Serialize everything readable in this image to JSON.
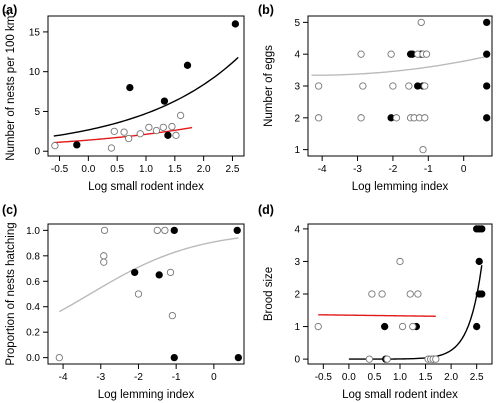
{
  "chart_data": [
    {
      "panel": "(a)",
      "type": "scatter",
      "xlabel": "Log small rodent index",
      "ylabel": "Number of nests per 100 km",
      "ylabel_sup": "2",
      "xlim": [
        -0.7,
        2.7
      ],
      "ylim": [
        -0.6,
        17
      ],
      "xticks": [
        -0.5,
        0.0,
        0.5,
        1.0,
        1.5,
        2.0,
        2.5
      ],
      "yticks": [
        0,
        5,
        10,
        15
      ],
      "grid": false,
      "colors": {
        "filled": "#000000",
        "open": "#777777",
        "fit_filled": "#000000",
        "fit_open": "#e31a1c"
      },
      "series": [
        {
          "marker": "filled",
          "points": [
            [
              -0.2,
              0.8
            ],
            [
              0.72,
              8.0
            ],
            [
              1.32,
              6.3
            ],
            [
              1.38,
              2.0
            ],
            [
              1.72,
              10.8
            ],
            [
              2.55,
              16.0
            ]
          ]
        },
        {
          "marker": "open",
          "points": [
            [
              -0.58,
              0.7
            ],
            [
              0.4,
              0.4
            ],
            [
              0.45,
              2.5
            ],
            [
              0.62,
              2.4
            ],
            [
              0.7,
              1.6
            ],
            [
              0.9,
              2.2
            ],
            [
              1.05,
              3.0
            ],
            [
              1.18,
              2.6
            ],
            [
              1.3,
              3.0
            ],
            [
              1.45,
              3.1
            ],
            [
              1.52,
              2.0
            ],
            [
              1.6,
              4.5
            ]
          ]
        }
      ],
      "fit_lines": [
        {
          "color_key": "fit_filled",
          "x": [
            -0.6,
            2.6
          ],
          "fn": "exp",
          "a": 2.68,
          "b": 0.57
        },
        {
          "color_key": "fit_open",
          "x": [
            -0.6,
            1.8
          ],
          "fn": "exp",
          "a": 1.4,
          "b": 0.42
        }
      ]
    },
    {
      "panel": "(b)",
      "type": "scatter",
      "xlabel": "Log lemming index",
      "ylabel": "Number of eggs",
      "xlim": [
        -4.4,
        0.8
      ],
      "ylim": [
        0.8,
        5.2
      ],
      "xticks": [
        -4,
        -3,
        -2,
        -1,
        0
      ],
      "yticks": [
        1,
        2,
        3,
        4,
        5
      ],
      "grid": false,
      "colors": {
        "filled": "#000000",
        "open": "#777777",
        "fit": "#bbbbbb"
      },
      "series": [
        {
          "marker": "filled",
          "points": [
            [
              -2.05,
              2
            ],
            [
              -1.5,
              4
            ],
            [
              -1.45,
              4
            ],
            [
              -1.3,
              3
            ],
            [
              -1.2,
              4
            ],
            [
              -1.15,
              3
            ],
            [
              0.65,
              5
            ],
            [
              0.65,
              4
            ],
            [
              0.65,
              3
            ],
            [
              0.65,
              2
            ]
          ]
        },
        {
          "marker": "open",
          "points": [
            [
              -4.1,
              3
            ],
            [
              -4.1,
              2
            ],
            [
              -2.9,
              4
            ],
            [
              -2.85,
              3
            ],
            [
              -2.9,
              2
            ],
            [
              -2.05,
              4
            ],
            [
              -2.0,
              3
            ],
            [
              -1.9,
              2
            ],
            [
              -1.55,
              3
            ],
            [
              -1.5,
              2
            ],
            [
              -1.4,
              2
            ],
            [
              -1.3,
              4
            ],
            [
              -1.25,
              2
            ],
            [
              -1.2,
              5
            ],
            [
              -1.15,
              4
            ],
            [
              -1.1,
              3
            ],
            [
              -1.1,
              2
            ],
            [
              -1.15,
              1
            ],
            [
              -1.05,
              4
            ]
          ]
        }
      ],
      "fit_lines": [
        {
          "color_key": "fit",
          "x": [
            -4.3,
            0.65
          ],
          "fn": "poly",
          "coef": [
            3.78,
            0.21,
            0.025
          ]
        }
      ]
    },
    {
      "panel": "(c)",
      "type": "scatter",
      "xlabel": "Log lemming index",
      "ylabel": "Proportion of nests hatching",
      "xlim": [
        -4.4,
        0.8
      ],
      "ylim": [
        -0.05,
        1.05
      ],
      "xticks": [
        -4,
        -3,
        -2,
        -1,
        0
      ],
      "yticks": [
        0.0,
        0.2,
        0.4,
        0.6,
        0.8,
        1.0
      ],
      "grid": false,
      "colors": {
        "filled": "#000000",
        "open": "#777777",
        "fit": "#bbbbbb"
      },
      "series": [
        {
          "marker": "filled",
          "points": [
            [
              -2.1,
              0.67
            ],
            [
              -1.45,
              0.65
            ],
            [
              -1.05,
              1.0
            ],
            [
              -1.05,
              0.0
            ],
            [
              0.62,
              1.0
            ],
            [
              0.65,
              0.0
            ]
          ]
        },
        {
          "marker": "open",
          "points": [
            [
              -4.1,
              0.0
            ],
            [
              -2.9,
              1.0
            ],
            [
              -2.92,
              0.8
            ],
            [
              -2.92,
              0.75
            ],
            [
              -2.0,
              0.5
            ],
            [
              -1.5,
              1.0
            ],
            [
              -1.3,
              1.0
            ],
            [
              -1.15,
              0.67
            ],
            [
              -1.1,
              0.33
            ]
          ]
        }
      ],
      "fit_lines": [
        {
          "color_key": "fit",
          "x": [
            -4.1,
            0.65
          ],
          "fn": "logistic",
          "a": 2.3,
          "b": 0.7
        }
      ]
    },
    {
      "panel": "(d)",
      "type": "scatter",
      "xlabel": "Log small rodent index",
      "ylabel": "Brood size",
      "xlim": [
        -0.8,
        2.8
      ],
      "ylim": [
        -0.15,
        4.15
      ],
      "xticks": [
        -0.5,
        0.0,
        0.5,
        1.0,
        1.5,
        2.0,
        2.5
      ],
      "yticks": [
        0,
        1,
        2,
        3,
        4
      ],
      "grid": false,
      "colors": {
        "filled": "#000000",
        "open": "#777777",
        "fit_filled": "#000000",
        "fit_open": "#e31a1c"
      },
      "series": [
        {
          "marker": "filled",
          "points": [
            [
              0.72,
              0
            ],
            [
              0.7,
              1
            ],
            [
              1.32,
              1
            ],
            [
              1.65,
              0
            ],
            [
              2.5,
              4
            ],
            [
              2.55,
              4
            ],
            [
              2.6,
              4
            ],
            [
              2.55,
              3
            ],
            [
              2.55,
              2
            ],
            [
              2.6,
              2
            ],
            [
              2.5,
              1
            ]
          ]
        },
        {
          "marker": "open",
          "points": [
            [
              -0.6,
              1
            ],
            [
              0.4,
              0
            ],
            [
              0.45,
              2
            ],
            [
              0.65,
              2
            ],
            [
              0.75,
              0
            ],
            [
              1.0,
              3
            ],
            [
              1.05,
              1
            ],
            [
              1.2,
              2
            ],
            [
              1.25,
              1
            ],
            [
              1.35,
              2
            ],
            [
              1.55,
              0
            ],
            [
              1.6,
              0
            ],
            [
              1.65,
              0
            ],
            [
              1.7,
              0
            ]
          ]
        }
      ],
      "fit_lines": [
        {
          "color_key": "fit_filled",
          "x": [
            0.0,
            2.6
          ],
          "fn": "exp",
          "a": 0.0001,
          "b": 3.95
        },
        {
          "color_key": "fit_open",
          "x": [
            -0.6,
            1.7
          ],
          "fn": "linear",
          "a": 1.35,
          "b": -0.02
        }
      ]
    }
  ]
}
